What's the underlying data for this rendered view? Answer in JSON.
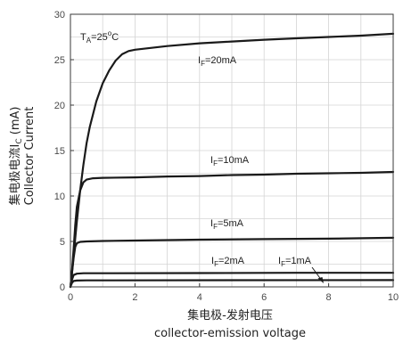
{
  "chart_data": {
    "type": "line",
    "xlabel": "集电极-发射电压",
    "xlabel_en": "collector-emission voltage",
    "ylabel": "集电极电流I",
    "ylabel_sub": "C",
    "ylabel_unit": " (mA)",
    "ylabel_en": "Collector Current",
    "xlim": [
      0,
      10
    ],
    "ylim": [
      0,
      30
    ],
    "x_ticks": [
      0,
      2,
      4,
      6,
      8,
      10
    ],
    "y_ticks": [
      0,
      5,
      10,
      15,
      20,
      25,
      30
    ],
    "grid": true,
    "condition": {
      "main": "T",
      "sub": "A",
      "rest": "=25",
      "sup": "o",
      "unit": "C"
    },
    "series": [
      {
        "name": "IF=20mA",
        "label_main": "I",
        "label_sub": "F",
        "label_rest": "=20mA",
        "points": [
          [
            0,
            0
          ],
          [
            0.05,
            1.6
          ],
          [
            0.1,
            3.5
          ],
          [
            0.2,
            7.2
          ],
          [
            0.3,
            10.6
          ],
          [
            0.4,
            13.4
          ],
          [
            0.5,
            15.8
          ],
          [
            0.6,
            17.6
          ],
          [
            0.8,
            20.4
          ],
          [
            1.0,
            22.4
          ],
          [
            1.2,
            23.8
          ],
          [
            1.4,
            24.9
          ],
          [
            1.6,
            25.6
          ],
          [
            1.8,
            25.95
          ],
          [
            2.0,
            26.1
          ],
          [
            3,
            26.5
          ],
          [
            4,
            26.8
          ],
          [
            5,
            27.0
          ],
          [
            6,
            27.2
          ],
          [
            7,
            27.35
          ],
          [
            8,
            27.5
          ],
          [
            9,
            27.65
          ],
          [
            10,
            27.85
          ]
        ]
      },
      {
        "name": "IF=10mA",
        "label_main": "I",
        "label_sub": "F",
        "label_rest": "=10mA",
        "points": [
          [
            0,
            0
          ],
          [
            0.05,
            1.8
          ],
          [
            0.1,
            4.2
          ],
          [
            0.15,
            6.8
          ],
          [
            0.2,
            8.8
          ],
          [
            0.3,
            10.6
          ],
          [
            0.4,
            11.5
          ],
          [
            0.5,
            11.8
          ],
          [
            0.7,
            11.95
          ],
          [
            1,
            12.0
          ],
          [
            2,
            12.05
          ],
          [
            3,
            12.15
          ],
          [
            4,
            12.2
          ],
          [
            5,
            12.3
          ],
          [
            6,
            12.35
          ],
          [
            7,
            12.45
          ],
          [
            8,
            12.5
          ],
          [
            9,
            12.55
          ],
          [
            10,
            12.65
          ]
        ]
      },
      {
        "name": "IF=5mA",
        "label_main": "I",
        "label_sub": "F",
        "label_rest": "=5mA",
        "points": [
          [
            0,
            0
          ],
          [
            0.05,
            1.6
          ],
          [
            0.1,
            3.2
          ],
          [
            0.15,
            4.4
          ],
          [
            0.2,
            4.8
          ],
          [
            0.3,
            4.95
          ],
          [
            0.5,
            5.0
          ],
          [
            1,
            5.05
          ],
          [
            2,
            5.1
          ],
          [
            4,
            5.2
          ],
          [
            6,
            5.25
          ],
          [
            8,
            5.3
          ],
          [
            10,
            5.4
          ]
        ]
      },
      {
        "name": "IF=2mA",
        "label_main": "I",
        "label_sub": "F",
        "label_rest": "=2mA",
        "points": [
          [
            0,
            0
          ],
          [
            0.05,
            0.8
          ],
          [
            0.1,
            1.3
          ],
          [
            0.2,
            1.45
          ],
          [
            0.4,
            1.5
          ],
          [
            1,
            1.5
          ],
          [
            4,
            1.52
          ],
          [
            7,
            1.55
          ],
          [
            10,
            1.55
          ]
        ]
      },
      {
        "name": "IF=1mA",
        "label_main": "I",
        "label_sub": "F",
        "label_rest": "=1mA",
        "points": [
          [
            0,
            0
          ],
          [
            0.05,
            0.45
          ],
          [
            0.1,
            0.65
          ],
          [
            0.2,
            0.7
          ],
          [
            0.5,
            0.72
          ],
          [
            1,
            0.72
          ],
          [
            5,
            0.74
          ],
          [
            10,
            0.75
          ]
        ]
      }
    ]
  }
}
